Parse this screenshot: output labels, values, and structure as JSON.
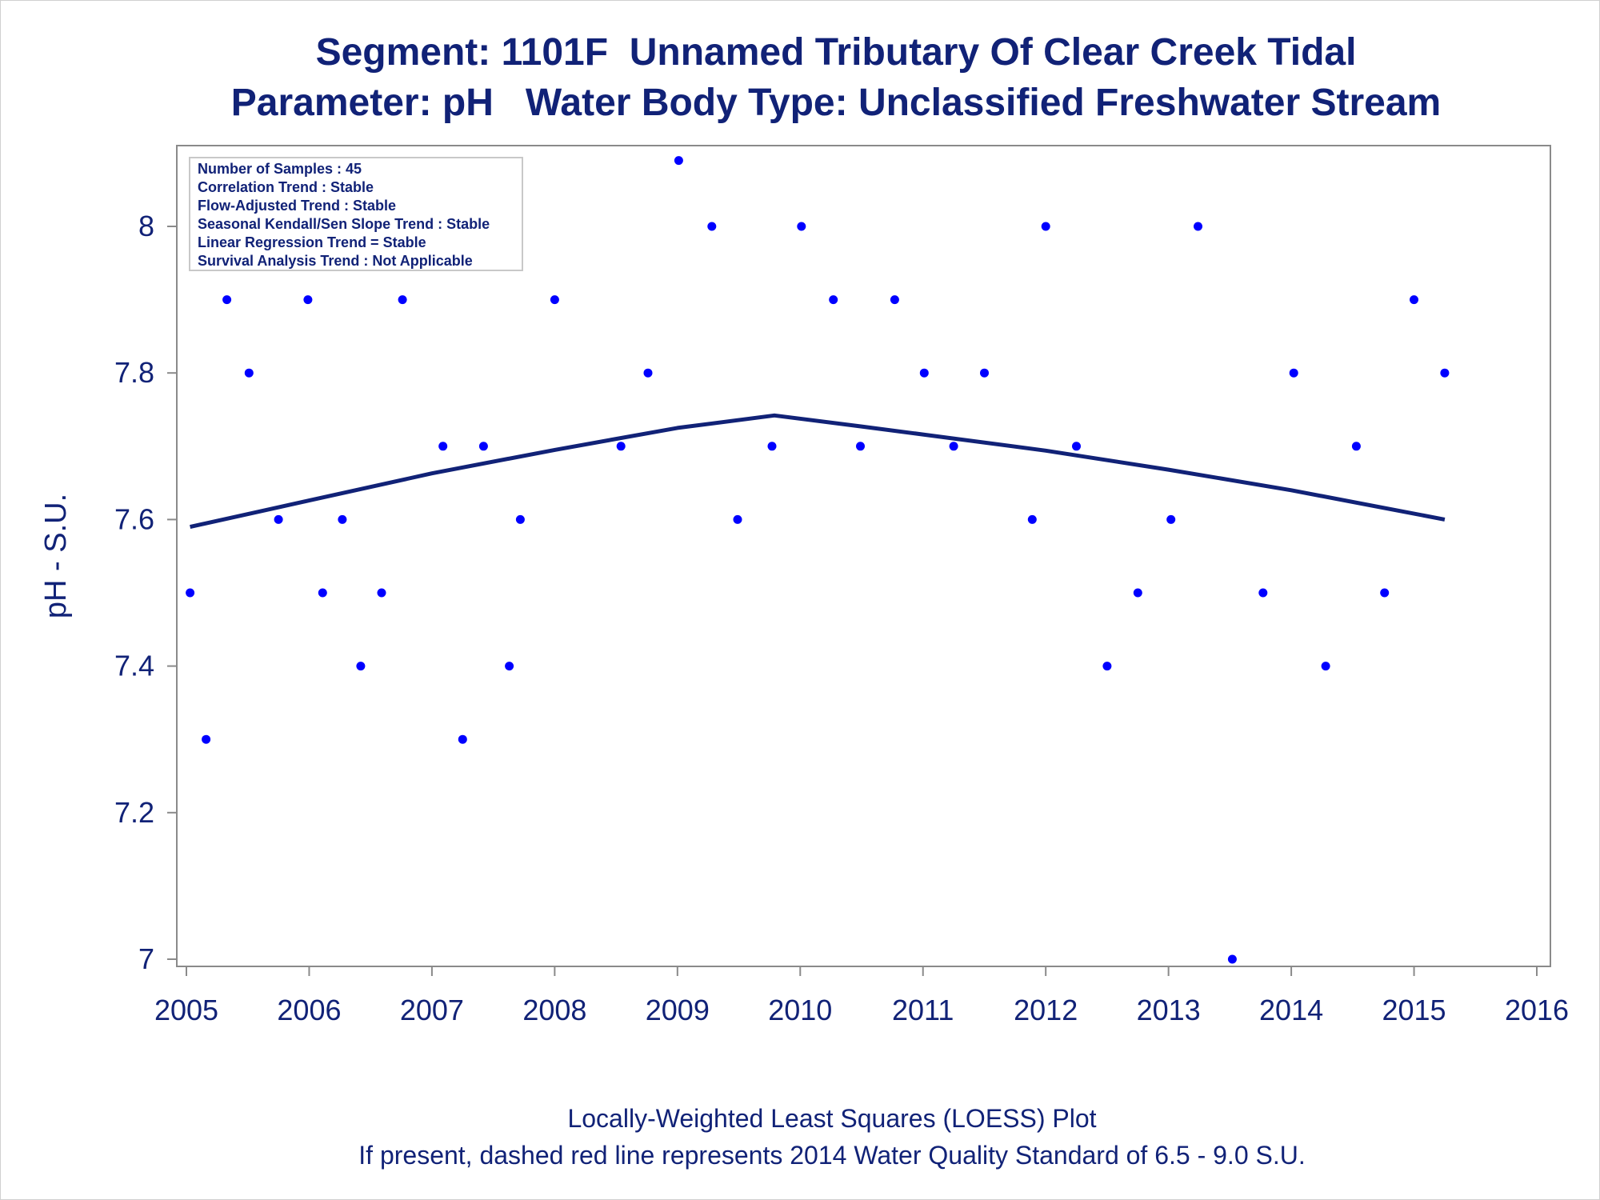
{
  "chart_data": {
    "type": "scatter",
    "title": "Segment: 1101F  Unnamed Tributary Of Clear Creek Tidal",
    "subtitle": "Parameter: pH   Water Body Type: Unclassified Freshwater Stream",
    "ylabel": "pH - S.U.",
    "footnotes": [
      "Locally-Weighted Least Squares (LOESS) Plot",
      "If present, dashed red line represents 2014 Water Quality Standard of 6.5 - 9.0 S.U."
    ],
    "stats_box": [
      "Number of Samples : 45",
      "Correlation Trend : Stable",
      "Flow-Adjusted Trend : Stable",
      "Seasonal Kendall/Sen Slope Trend : Stable",
      "Linear Regression Trend = Stable",
      "Survival Analysis Trend : Not Applicable"
    ],
    "xlim": [
      2005,
      2016
    ],
    "ylim": [
      6.99,
      8.11
    ],
    "xticks": [
      "2005",
      "2006",
      "2007",
      "2008",
      "2009",
      "2010",
      "2011",
      "2012",
      "2013",
      "2014",
      "2015",
      "2016"
    ],
    "yticks": [
      "7",
      "7.2",
      "7.4",
      "7.6",
      "7.8",
      "8"
    ],
    "grid": false,
    "series": [
      {
        "kind": "points",
        "color": "#0000ff",
        "x": [
          2005.03,
          2005.16,
          2005.33,
          2005.51,
          2005.75,
          2005.99,
          2006.11,
          2006.27,
          2006.42,
          2006.59,
          2006.76,
          2007.09,
          2007.25,
          2007.42,
          2007.63,
          2007.72,
          2008.0,
          2008.54,
          2008.76,
          2009.01,
          2009.28,
          2009.49,
          2009.77,
          2010.01,
          2010.27,
          2010.49,
          2010.77,
          2011.01,
          2011.25,
          2011.5,
          2011.89,
          2012.0,
          2012.25,
          2012.5,
          2012.75,
          2013.02,
          2013.24,
          2013.52,
          2013.77,
          2014.02,
          2014.28,
          2014.53,
          2014.76,
          2015.0,
          2015.25
        ],
        "y": [
          7.5,
          7.3,
          7.9,
          7.8,
          7.6,
          7.9,
          7.5,
          7.6,
          7.4,
          7.5,
          7.9,
          7.7,
          7.3,
          7.7,
          7.4,
          7.6,
          7.9,
          7.7,
          7.8,
          8.09,
          8.0,
          7.6,
          7.7,
          8.0,
          7.9,
          7.7,
          7.9,
          7.8,
          7.7,
          7.8,
          7.6,
          8.0,
          7.7,
          7.4,
          7.5,
          7.6,
          8.0,
          7.0,
          7.5,
          7.8,
          7.4,
          7.7,
          7.5,
          7.9,
          7.8
        ]
      },
      {
        "kind": "loess",
        "color": "#112277",
        "x": [
          2005.03,
          2006.0,
          2007.0,
          2008.0,
          2009.0,
          2009.79,
          2010.5,
          2011.0,
          2012.0,
          2013.0,
          2014.0,
          2015.25
        ],
        "y": [
          7.59,
          7.626,
          7.663,
          7.695,
          7.725,
          7.742,
          7.727,
          7.716,
          7.694,
          7.668,
          7.64,
          7.6
        ]
      }
    ]
  }
}
